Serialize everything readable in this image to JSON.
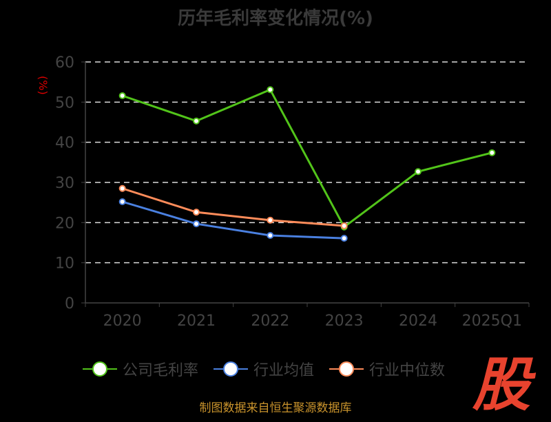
{
  "chart_data": {
    "type": "line",
    "title": "历年毛利率变化情况(%)",
    "ylabel": "(%)",
    "xlabel": "",
    "categories": [
      "2020",
      "2021",
      "2022",
      "2023",
      "2024",
      "2025Q1"
    ],
    "ylim": [
      0,
      60
    ],
    "yticks": [
      0,
      10,
      20,
      30,
      40,
      50,
      60
    ],
    "grid": true,
    "legend_position": "bottom",
    "series": [
      {
        "name": "公司毛利率",
        "color": "#52c41a",
        "values": [
          51.6,
          45.3,
          53.1,
          18.9,
          32.7,
          37.4
        ]
      },
      {
        "name": "行业均值",
        "color": "#4a80e0",
        "values": [
          25.2,
          19.7,
          16.8,
          16.1,
          null,
          null
        ]
      },
      {
        "name": "行业中位数",
        "color": "#ff8c5a",
        "values": [
          28.5,
          22.6,
          20.6,
          19.2,
          null,
          null
        ]
      }
    ]
  },
  "footer": {
    "source": "制图数据来自恒生聚源数据库",
    "logo": "股"
  }
}
